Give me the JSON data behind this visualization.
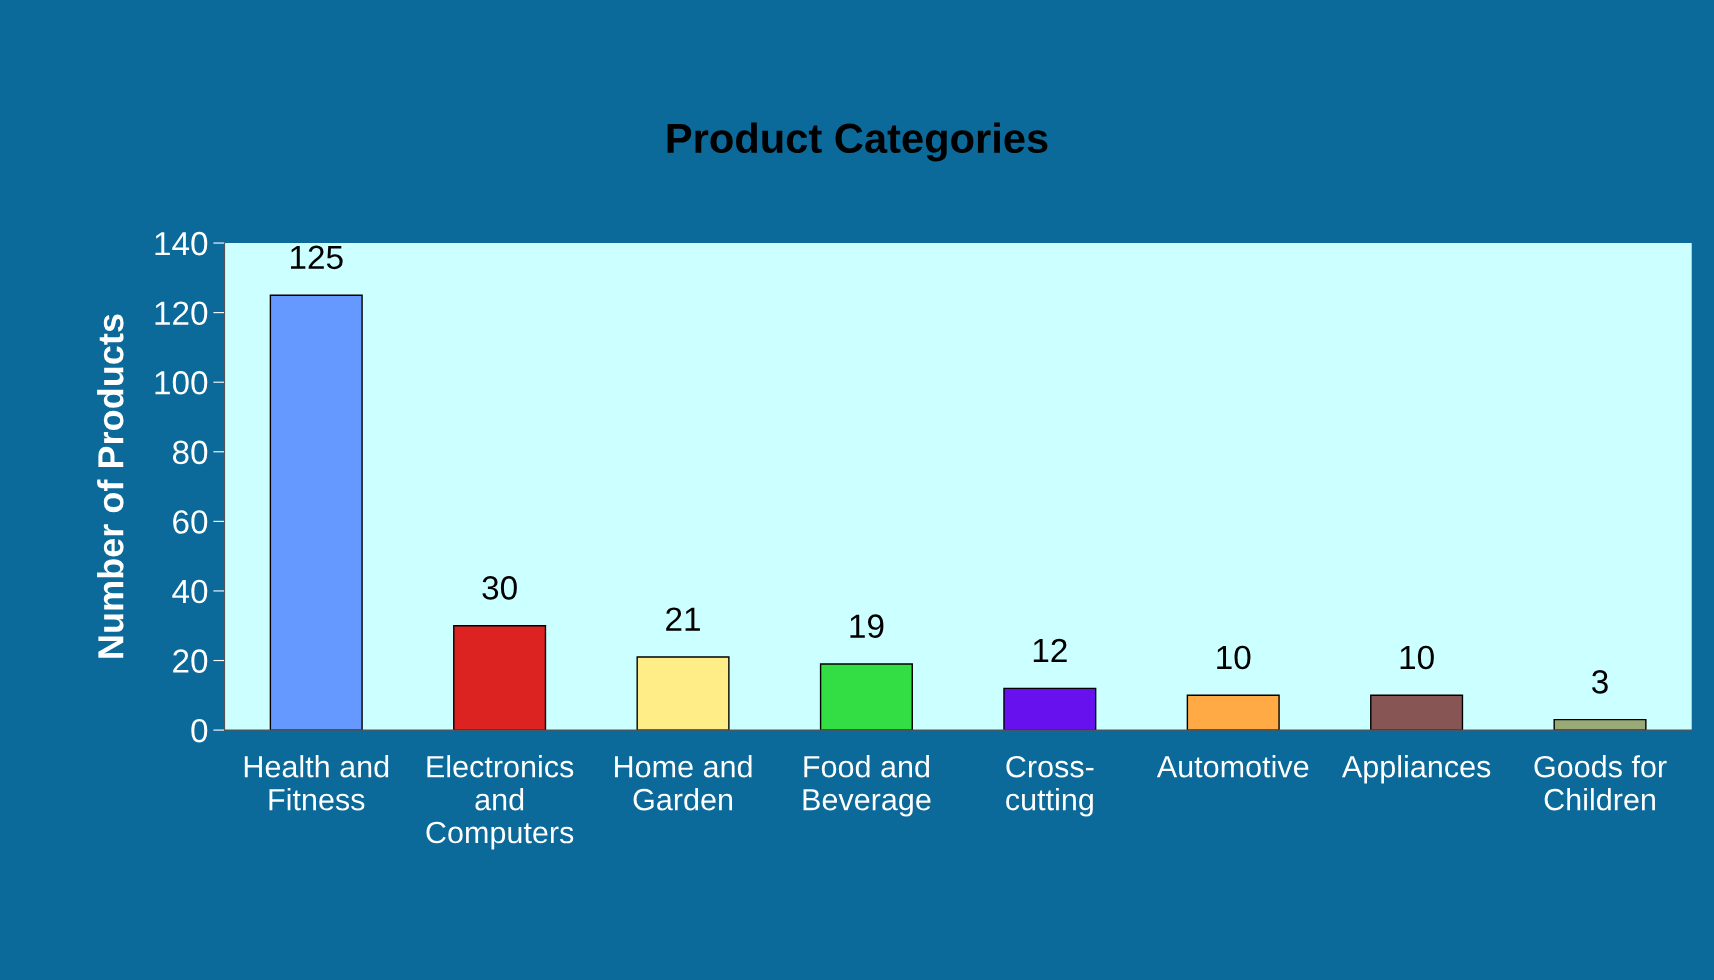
{
  "chart_data": {
    "type": "bar",
    "title": "Product Categories",
    "ylabel": "Number of Products",
    "categories": [
      "Health and\nFitness",
      "Electronics\nand\nComputers",
      "Home and\nGarden",
      "Food and\nBeverage",
      "Cross-\ncutting",
      "Automotive",
      "Appliances",
      "Goods for\nChildren"
    ],
    "values": [
      125,
      30,
      21,
      19,
      12,
      10,
      10,
      3
    ],
    "colors": [
      "#6699ff",
      "#dd2222",
      "#ffee88",
      "#33dd44",
      "#6611ee",
      "#ffaa44",
      "#885555",
      "#99aa77"
    ],
    "ylim": [
      0,
      140
    ],
    "yticks": [
      0,
      20,
      40,
      60,
      80,
      100,
      120,
      140
    ],
    "grid": false,
    "data_labels": true
  }
}
